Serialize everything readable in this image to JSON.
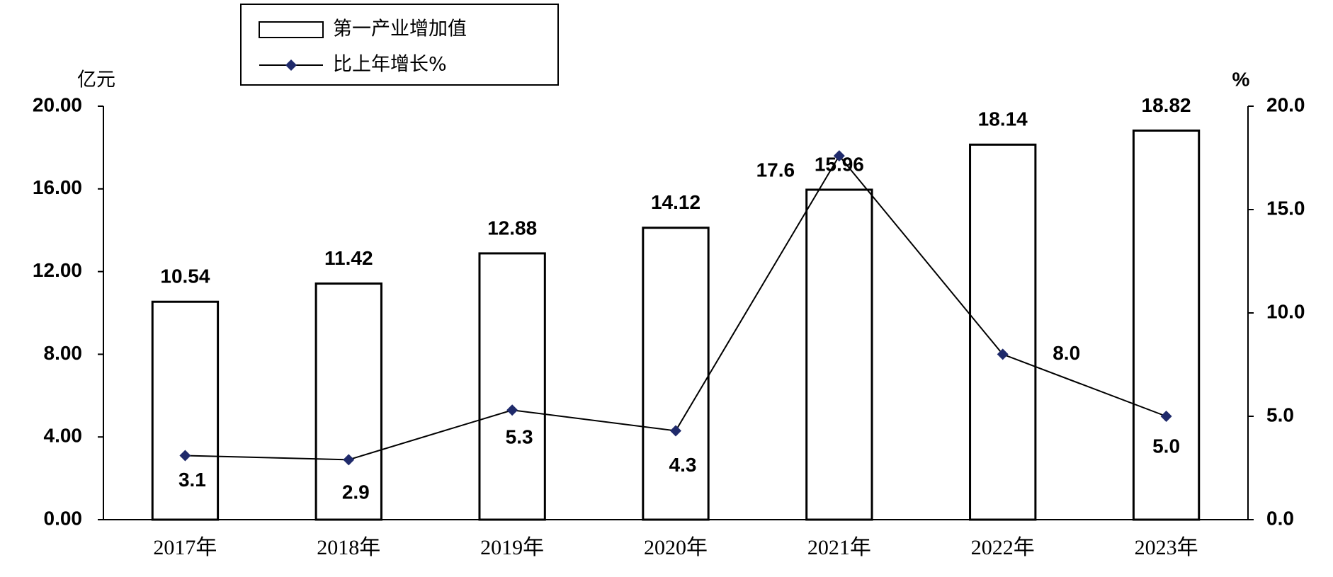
{
  "chart_data": {
    "type": "bar",
    "categories": [
      "2017年",
      "2018年",
      "2019年",
      "2020年",
      "2021年",
      "2022年",
      "2023年"
    ],
    "y_label": "亿元",
    "y2_label": "%",
    "series": [
      {
        "name": "第一产业增加值",
        "type": "bar",
        "color": "#ffffff",
        "values": [
          10.54,
          11.42,
          12.88,
          14.12,
          15.96,
          18.14,
          18.82
        ]
      },
      {
        "name": "比上年增长%",
        "type": "line",
        "axis": "y2",
        "color": "#000000",
        "marker_color": "#1f2a6b",
        "values": [
          3.1,
          2.9,
          5.3,
          4.3,
          17.6,
          8.0,
          5.0
        ],
        "value_labels": [
          "3.1",
          "2.9",
          "5.3",
          "4.3",
          "17.6",
          "8.0",
          "5.0"
        ]
      }
    ],
    "ylim": [
      0,
      20
    ],
    "yticks": [
      {
        "value": 0,
        "label": "0.00"
      },
      {
        "value": 4,
        "label": "4.00"
      },
      {
        "value": 8,
        "label": "8.00"
      },
      {
        "value": 12,
        "label": "12.00"
      },
      {
        "value": 16,
        "label": "16.00"
      },
      {
        "value": 20,
        "label": "20.00"
      }
    ],
    "y2lim": [
      0,
      20
    ],
    "y2ticks": [
      {
        "value": 0,
        "label": "0.0"
      },
      {
        "value": 5,
        "label": "5.0"
      },
      {
        "value": 10,
        "label": "10.0"
      },
      {
        "value": 15,
        "label": "15.0"
      },
      {
        "value": 20,
        "label": "20.0"
      }
    ],
    "grid": false,
    "legend": "top-left"
  }
}
